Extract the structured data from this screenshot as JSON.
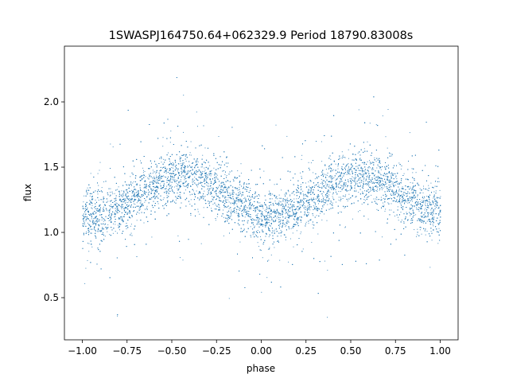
{
  "chart_data": {
    "type": "scatter",
    "title": "1SWASPJ164750.64+062329.9 Period 18790.83008s",
    "xlabel": "phase",
    "ylabel": "flux",
    "xlim": [
      -1.1,
      1.1
    ],
    "ylim": [
      0.177,
      2.427
    ],
    "xticks": [
      -1.0,
      -0.75,
      -0.5,
      -0.25,
      0.0,
      0.25,
      0.5,
      0.75,
      1.0
    ],
    "xtick_labels": [
      "−1.00",
      "−0.75",
      "−0.50",
      "−0.25",
      "0.00",
      "0.25",
      "0.50",
      "0.75",
      "1.00"
    ],
    "yticks": [
      0.5,
      1.0,
      1.5,
      2.0
    ],
    "ytick_labels": [
      "0.5",
      "1.0",
      "1.5",
      "2.0"
    ],
    "grid": false,
    "marker_color": "#1f77b4",
    "x_range_of_points": [
      -1.0,
      1.0
    ],
    "binned_mean": {
      "phase": [
        -1.0,
        -0.9,
        -0.8,
        -0.7,
        -0.6,
        -0.5,
        -0.4,
        -0.3,
        -0.2,
        -0.1,
        0.0,
        0.1,
        0.2,
        0.3,
        0.4,
        0.5,
        0.6,
        0.7,
        0.8,
        0.9,
        1.0
      ],
      "flux": [
        1.13,
        1.13,
        1.19,
        1.28,
        1.37,
        1.43,
        1.43,
        1.37,
        1.28,
        1.19,
        1.13,
        1.13,
        1.19,
        1.28,
        1.37,
        1.43,
        1.43,
        1.37,
        1.28,
        1.19,
        1.15
      ]
    },
    "scatter_sigma": 0.1
  }
}
